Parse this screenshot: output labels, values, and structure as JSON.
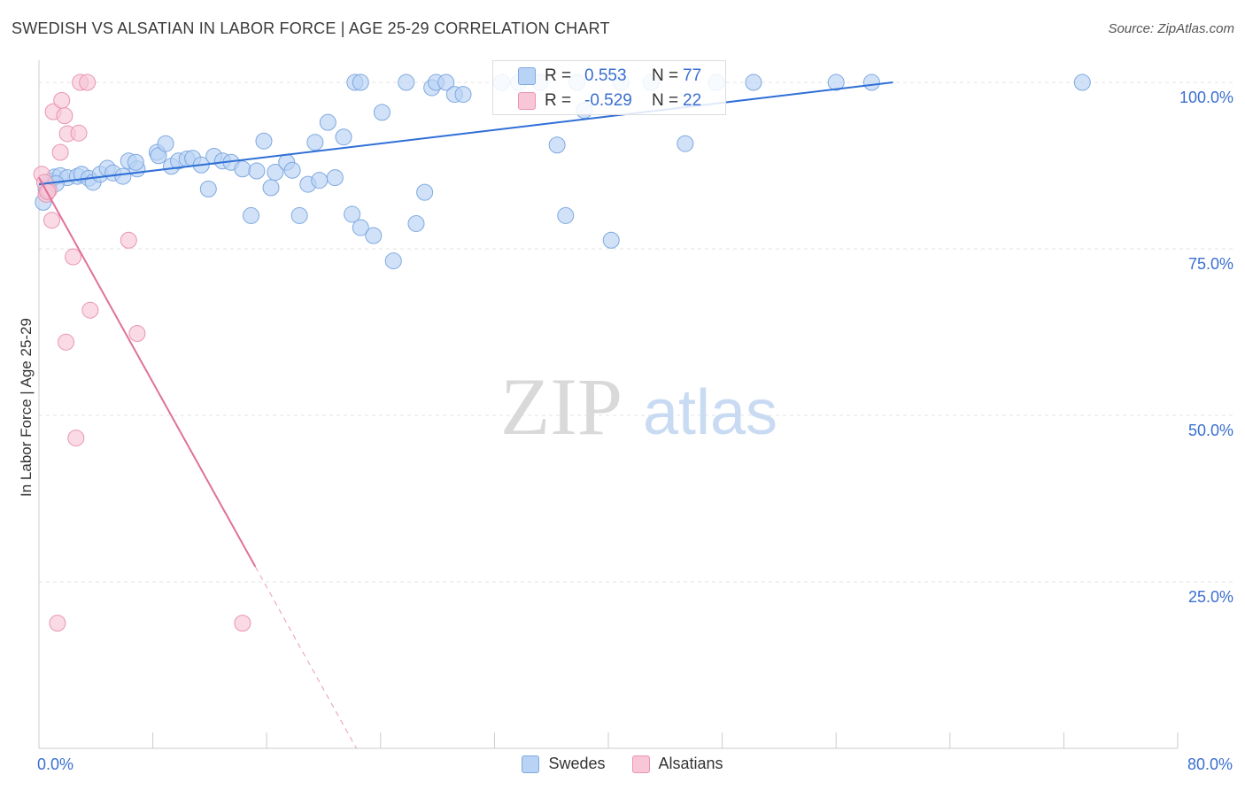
{
  "header": {
    "title": "SWEDISH VS ALSATIAN IN LABOR FORCE | AGE 25-29 CORRELATION CHART",
    "source": "Source: ZipAtlas.com"
  },
  "watermark": {
    "zip": "ZIP",
    "atlas": "atlas"
  },
  "colors": {
    "blue_fill": "#b9d3f5",
    "blue_stroke": "#7ea8e0",
    "blue_line": "#2f6fd6",
    "pink_fill": "#f8c6d6",
    "pink_stroke": "#e995b2",
    "pink_line": "#e0709a",
    "tick_label": "#3a6fd0"
  },
  "stats": {
    "swedes": {
      "r_label": "R =",
      "r_value": "0.553",
      "n_label": "N =",
      "n_value": "77"
    },
    "alsatians": {
      "r_label": "R =",
      "r_value": "-0.529",
      "n_label": "N =",
      "n_value": "22"
    }
  },
  "chart_data": {
    "type": "scatter",
    "title": "SWEDISH VS ALSATIAN IN LABOR FORCE | AGE 25-29 CORRELATION CHART",
    "xlabel": "",
    "ylabel": "In Labor Force | Age 25-29",
    "xlim": [
      0,
      80
    ],
    "ylim": [
      0,
      102
    ],
    "x_tick_labels": [
      {
        "value": 0,
        "label": "0.0%"
      },
      {
        "value": 80,
        "label": "80.0%"
      }
    ],
    "y_tick_labels": [
      {
        "value": 25,
        "label": "25.0%"
      },
      {
        "value": 50,
        "label": "50.0%"
      },
      {
        "value": 75,
        "label": "75.0%"
      },
      {
        "value": 100,
        "label": "100.0%"
      }
    ],
    "legend": [
      "Swedes",
      "Alsatians"
    ],
    "series": [
      {
        "name": "Swedes",
        "trend": {
          "x0": 0,
          "y0": 84.7,
          "x1": 60,
          "y1": 100.0,
          "dashed_from": null
        },
        "points": [
          [
            0.3,
            82.0
          ],
          [
            0.6,
            84.5
          ],
          [
            0.8,
            85.2
          ],
          [
            1.1,
            85.8
          ],
          [
            1.5,
            86.0
          ],
          [
            2.0,
            85.7
          ],
          [
            2.7,
            85.9
          ],
          [
            3.0,
            86.2
          ],
          [
            3.5,
            85.6
          ],
          [
            3.8,
            85.0
          ],
          [
            4.3,
            86.2
          ],
          [
            4.8,
            87.1
          ],
          [
            5.2,
            86.4
          ],
          [
            5.9,
            85.9
          ],
          [
            6.3,
            88.2
          ],
          [
            6.9,
            87.0
          ],
          [
            6.8,
            88.0
          ],
          [
            8.3,
            89.5
          ],
          [
            8.4,
            89.0
          ],
          [
            8.9,
            90.8
          ],
          [
            9.3,
            87.4
          ],
          [
            9.8,
            88.2
          ],
          [
            10.4,
            88.5
          ],
          [
            10.8,
            88.6
          ],
          [
            11.4,
            87.6
          ],
          [
            11.9,
            84.0
          ],
          [
            12.3,
            88.9
          ],
          [
            12.9,
            88.2
          ],
          [
            13.5,
            88.0
          ],
          [
            14.3,
            87.0
          ],
          [
            14.9,
            80.0
          ],
          [
            15.3,
            86.7
          ],
          [
            15.8,
            91.2
          ],
          [
            16.3,
            84.2
          ],
          [
            16.6,
            86.5
          ],
          [
            17.4,
            88.0
          ],
          [
            17.8,
            86.8
          ],
          [
            18.3,
            80.0
          ],
          [
            18.9,
            84.7
          ],
          [
            19.4,
            91.0
          ],
          [
            19.7,
            85.3
          ],
          [
            20.3,
            94.0
          ],
          [
            20.8,
            85.7
          ],
          [
            21.4,
            91.8
          ],
          [
            22.0,
            80.2
          ],
          [
            22.6,
            78.2
          ],
          [
            22.2,
            100.0
          ],
          [
            22.6,
            100.0
          ],
          [
            23.5,
            77.0
          ],
          [
            24.1,
            95.5
          ],
          [
            24.9,
            73.2
          ],
          [
            25.8,
            100.0
          ],
          [
            26.5,
            78.8
          ],
          [
            27.1,
            83.5
          ],
          [
            27.6,
            99.2
          ],
          [
            27.9,
            100.0
          ],
          [
            28.6,
            100.0
          ],
          [
            29.2,
            98.2
          ],
          [
            29.8,
            98.2
          ],
          [
            32.5,
            100.0
          ],
          [
            33.7,
            100.0
          ],
          [
            35.2,
            100.0
          ],
          [
            37.8,
            100.0
          ],
          [
            38.3,
            95.8
          ],
          [
            36.4,
            90.6
          ],
          [
            37.0,
            80.0
          ],
          [
            40.2,
            76.3
          ],
          [
            40.9,
            100.0
          ],
          [
            43.0,
            100.0
          ],
          [
            45.4,
            90.8
          ],
          [
            47.6,
            100.0
          ],
          [
            50.2,
            100.0
          ],
          [
            56.0,
            100.0
          ],
          [
            58.5,
            100.0
          ],
          [
            73.3,
            100.0
          ],
          [
            0.5,
            84.0
          ],
          [
            1.2,
            84.8
          ]
        ]
      },
      {
        "name": "Alsatians",
        "trend": {
          "x0": 0,
          "y0": 85.7,
          "x1": 22.3,
          "y1": 0.0,
          "solid_until_x": 15.2
        },
        "points": [
          [
            0.2,
            86.2
          ],
          [
            0.4,
            85.0
          ],
          [
            0.5,
            83.2
          ],
          [
            0.7,
            83.8
          ],
          [
            0.9,
            79.3
          ],
          [
            1.0,
            95.6
          ],
          [
            1.3,
            18.8
          ],
          [
            1.5,
            89.5
          ],
          [
            1.6,
            97.3
          ],
          [
            1.8,
            95.0
          ],
          [
            1.9,
            61.0
          ],
          [
            2.0,
            92.3
          ],
          [
            2.4,
            73.8
          ],
          [
            2.6,
            46.6
          ],
          [
            2.8,
            92.4
          ],
          [
            2.9,
            100.0
          ],
          [
            3.4,
            100.0
          ],
          [
            3.6,
            65.8
          ],
          [
            6.3,
            76.3
          ],
          [
            6.9,
            62.3
          ],
          [
            14.3,
            18.8
          ],
          [
            0.6,
            83.6
          ]
        ]
      }
    ]
  },
  "legend_bottom": {
    "swedes": "Swedes",
    "alsatians": "Alsatians"
  }
}
